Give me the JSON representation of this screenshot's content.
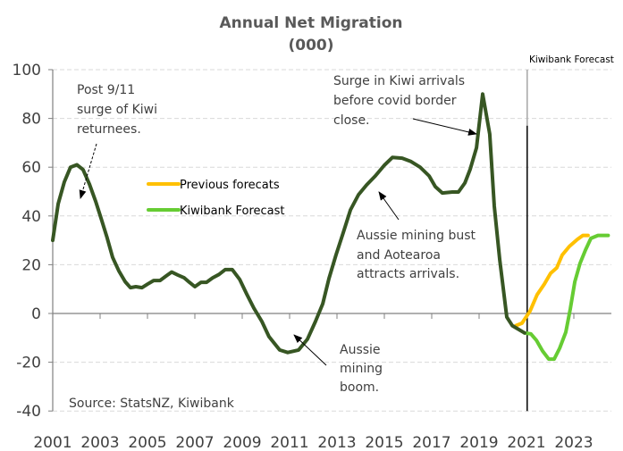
{
  "chart_data": {
    "type": "line",
    "title": "Annual Net Migration",
    "subtitle": "(000)",
    "xlabel": "",
    "ylabel": "",
    "xlim": [
      2001,
      2024.6
    ],
    "ylim": [
      -40,
      100
    ],
    "yticks": [
      -40,
      -20,
      0,
      20,
      40,
      60,
      80,
      100
    ],
    "xtick_labels": [
      "2001",
      "2003",
      "2005",
      "2007",
      "2009",
      "2011",
      "2013",
      "2015",
      "2017",
      "2019",
      "2021",
      "2023"
    ],
    "grid": "horizontal-dashed",
    "legend_position": "center-left",
    "forecast_marker": {
      "year": 2021.03,
      "label": "Kiwibank Forecast"
    },
    "source": "Source: StatsNZ, Kiwibank",
    "series": [
      {
        "name": "Net migration (actual)",
        "color": "#375623",
        "in_legend": false,
        "x": [
          2001.0,
          2001.23,
          2001.49,
          2001.75,
          2002.02,
          2002.28,
          2002.55,
          2002.81,
          2003.04,
          2003.3,
          2003.53,
          2003.79,
          2004.06,
          2004.28,
          2004.51,
          2004.77,
          2005.0,
          2005.26,
          2005.53,
          2005.79,
          2006.02,
          2006.28,
          2006.55,
          2006.77,
          2007.0,
          2007.26,
          2007.49,
          2007.75,
          2008.02,
          2008.28,
          2008.58,
          2008.89,
          2009.19,
          2009.49,
          2009.83,
          2010.13,
          2010.58,
          2010.92,
          2011.38,
          2011.75,
          2012.09,
          2012.4,
          2012.66,
          2012.96,
          2013.26,
          2013.57,
          2013.91,
          2014.25,
          2014.62,
          2015.0,
          2015.34,
          2015.75,
          2016.13,
          2016.51,
          2016.89,
          2017.15,
          2017.45,
          2017.87,
          2018.13,
          2018.4,
          2018.62,
          2018.89,
          2019.15,
          2019.45,
          2019.64,
          2019.87,
          2020.17,
          2020.4,
          2020.92
        ],
        "values": [
          30,
          45,
          54,
          60,
          61,
          59,
          53,
          46,
          39,
          31,
          23,
          17.5,
          13,
          10.6,
          11,
          10.6,
          12,
          13.5,
          13.5,
          15.4,
          17,
          15.8,
          14.6,
          12.8,
          11,
          12.8,
          12.8,
          14.6,
          16,
          18,
          18,
          14,
          8,
          2.2,
          -3.3,
          -9.5,
          -15,
          -16,
          -15,
          -10.6,
          -3.3,
          4,
          14.3,
          24,
          33,
          42.5,
          48.7,
          52.7,
          56.4,
          60.8,
          64,
          63.7,
          62.3,
          60,
          56.4,
          52,
          49.4,
          49.8,
          49.8,
          53.5,
          59,
          68,
          90,
          73.6,
          44,
          22,
          -1.5,
          -5,
          -8
        ]
      },
      {
        "name": "Previous forecats",
        "color": "#FFC000",
        "in_legend": true,
        "x": [
          2020.55,
          2020.81,
          2021.15,
          2021.45,
          2021.75,
          2022.02,
          2022.28,
          2022.51,
          2022.81,
          2023.15,
          2023.38,
          2023.6
        ],
        "values": [
          -5,
          -4,
          1,
          7.7,
          12,
          16.5,
          18.7,
          24,
          27.5,
          30.4,
          32,
          32
        ]
      },
      {
        "name": "Kiwibank Forecast",
        "color": "#66CC33",
        "in_legend": true,
        "x": [
          2020.92,
          2021.19,
          2021.42,
          2021.68,
          2021.94,
          2022.17,
          2022.4,
          2022.66,
          2022.85,
          2023.04,
          2023.26,
          2023.49,
          2023.72,
          2024.02,
          2024.45
        ],
        "values": [
          -8,
          -8.4,
          -11,
          -15.4,
          -18.7,
          -18.7,
          -14.3,
          -7.7,
          1.8,
          13,
          20.5,
          26,
          30.8,
          32,
          32
        ]
      }
    ],
    "annotations": [
      {
        "lines": [
          "Post 9/11",
          "surge of Kiwi",
          "returnees."
        ],
        "arrow_style": "dashed"
      },
      {
        "lines": [
          "Surge in Kiwi arrivals",
          "before covid  border",
          "close."
        ],
        "arrow_style": "solid"
      },
      {
        "lines": [
          "Aussie mining bust",
          "and Aotearoa",
          "attracts arrivals."
        ],
        "arrow_style": "solid"
      },
      {
        "lines": [
          "Aussie",
          "mining",
          "boom."
        ],
        "arrow_style": "solid"
      }
    ]
  }
}
